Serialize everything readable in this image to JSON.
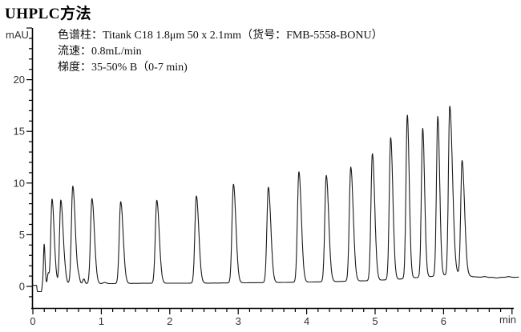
{
  "page": {
    "title": "UHPLC方法"
  },
  "annotation": {
    "lines": [
      "色谱柱：Titank C18 1.8μm 50 x 2.1mm（货号：FMB-5558-BONU）",
      "流速：0.8mL/min",
      "梯度：35-50% B（0-7 min)"
    ]
  },
  "chart_data": {
    "type": "line",
    "title": "UHPLC方法",
    "xlabel_unit": "min",
    "ylabel_unit": "mAU",
    "x_range": [
      0,
      7.0
    ],
    "y_range": [
      -2.1,
      25
    ],
    "x_major_ticks": [
      0,
      1,
      2,
      3,
      4,
      5,
      6
    ],
    "x_axis_end_tick": 7.0,
    "x_minor_divisions_per_major": 6,
    "y_major_ticks": [
      0,
      5,
      10,
      15,
      20
    ],
    "y_minor_step": 1,
    "y_minor_min": -1,
    "y_minor_max": 24,
    "grid": false,
    "axis_color": "#000000",
    "tick_label_color": "#333333",
    "trace_color": "#1a1a1a",
    "peaks": [
      {
        "t": 0.165,
        "mAU": 4.1,
        "sl": 0.01,
        "sr": 0.013
      },
      {
        "t": 0.28,
        "mAU": 8.45,
        "sl": 0.018,
        "sr": 0.03
      },
      {
        "t": 0.408,
        "mAU": 8.35,
        "sl": 0.018,
        "sr": 0.034
      },
      {
        "t": 0.583,
        "mAU": 9.7,
        "sl": 0.02,
        "sr": 0.036
      },
      {
        "t": 0.863,
        "mAU": 8.5,
        "sl": 0.021,
        "sr": 0.036
      },
      {
        "t": 1.283,
        "mAU": 8.2,
        "sl": 0.021,
        "sr": 0.036
      },
      {
        "t": 1.81,
        "mAU": 8.35,
        "sl": 0.021,
        "sr": 0.036
      },
      {
        "t": 2.388,
        "mAU": 8.75,
        "sl": 0.021,
        "sr": 0.036
      },
      {
        "t": 2.93,
        "mAU": 9.9,
        "sl": 0.021,
        "sr": 0.036
      },
      {
        "t": 3.44,
        "mAU": 9.6,
        "sl": 0.021,
        "sr": 0.036
      },
      {
        "t": 3.886,
        "mAU": 11.1,
        "sl": 0.021,
        "sr": 0.036
      },
      {
        "t": 4.286,
        "mAU": 10.75,
        "sl": 0.021,
        "sr": 0.036
      },
      {
        "t": 4.644,
        "mAU": 11.55,
        "sl": 0.021,
        "sr": 0.036
      },
      {
        "t": 4.96,
        "mAU": 12.85,
        "sl": 0.021,
        "sr": 0.034
      },
      {
        "t": 5.227,
        "mAU": 14.4,
        "sl": 0.02,
        "sr": 0.032
      },
      {
        "t": 5.47,
        "mAU": 16.6,
        "sl": 0.019,
        "sr": 0.028
      },
      {
        "t": 5.695,
        "mAU": 15.3,
        "sl": 0.019,
        "sr": 0.028
      },
      {
        "t": 5.915,
        "mAU": 16.45,
        "sl": 0.019,
        "sr": 0.028
      },
      {
        "t": 6.09,
        "mAU": 17.45,
        "sl": 0.019,
        "sr": 0.04
      },
      {
        "t": 6.27,
        "mAU": 12.2,
        "sl": 0.019,
        "sr": 0.036
      }
    ],
    "baseline": [
      [
        -0.02,
        0.1
      ],
      [
        0.055,
        0.1
      ],
      [
        0.065,
        -0.5
      ],
      [
        0.125,
        -0.5
      ],
      [
        0.14,
        0.2
      ],
      [
        0.25,
        0.25
      ],
      [
        0.5,
        0.3
      ],
      [
        0.9,
        0.25
      ],
      [
        1.6,
        0.3
      ],
      [
        2.6,
        0.32
      ],
      [
        3.6,
        0.38
      ],
      [
        4.3,
        0.45
      ],
      [
        4.9,
        0.55
      ],
      [
        5.35,
        0.7
      ],
      [
        5.6,
        0.85
      ],
      [
        5.9,
        1.0
      ],
      [
        6.1,
        1.15
      ],
      [
        6.25,
        1.2
      ],
      [
        6.42,
        0.95
      ],
      [
        6.6,
        0.85
      ],
      [
        6.8,
        0.9
      ],
      [
        6.95,
        0.85
      ],
      [
        7.1,
        0.9
      ]
    ],
    "noise_bumps": [
      {
        "t": 0.225,
        "h": 1.0,
        "w": 0.012
      },
      {
        "t": 0.335,
        "h": 0.35,
        "w": 0.018
      },
      {
        "t": 0.47,
        "h": 0.4,
        "w": 0.018
      },
      {
        "t": 0.67,
        "h": 0.5,
        "w": 0.015
      },
      {
        "t": 0.745,
        "h": 0.45,
        "w": 0.015
      },
      {
        "t": 1.05,
        "h": 0.12,
        "w": 0.025
      },
      {
        "t": 6.6,
        "h": 0.1,
        "w": 0.03
      },
      {
        "t": 6.78,
        "h": -0.08,
        "w": 0.03
      },
      {
        "t": 6.95,
        "h": 0.1,
        "w": 0.03
      }
    ]
  }
}
